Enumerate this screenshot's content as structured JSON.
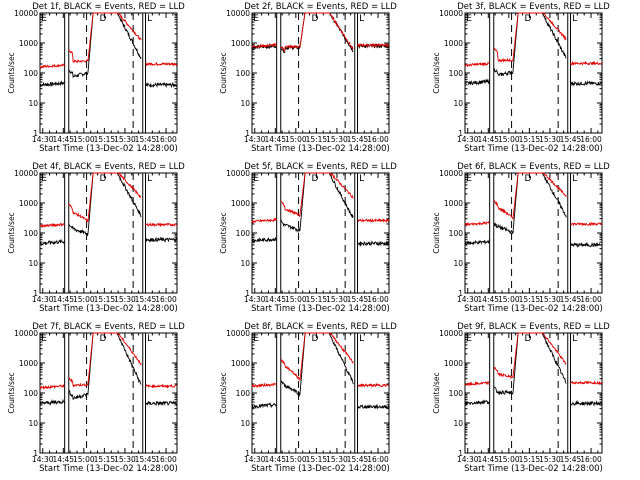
{
  "colors": {
    "events": "#000000",
    "lld": "#e00000",
    "background": "#ffffff"
  },
  "chart_data": [
    {
      "type": "line",
      "title": "Det 1f, BLACK = Events, RED = LLD",
      "xlabel": "Start Time (13-Dec-02 14:28:00)",
      "ylabel": "Counts/sec",
      "xticks": [
        "14:30",
        "14:45",
        "15:00",
        "15:15",
        "15:30",
        "15:45",
        "16:00"
      ],
      "yticks": [
        "1",
        "10",
        "100",
        "1000",
        "10000"
      ],
      "yscale": "log",
      "ylim": [
        1,
        10000
      ],
      "xlim_minutes": [
        0,
        100
      ],
      "markers": [
        "E",
        "D",
        "L"
      ],
      "series": [
        {
          "name": "Events",
          "color": "#000000",
          "base": 40,
          "pre": 70,
          "jump": 130,
          "dip": 100,
          "peakTail": 500,
          "post": 40
        },
        {
          "name": "LLD",
          "color": "#e00000",
          "base": 160,
          "pre": 240,
          "jump": 600,
          "dip": 250,
          "peakTail": 2000,
          "post": 200
        }
      ]
    },
    {
      "type": "line",
      "title": "Det 2f, BLACK = Events, RED = LLD",
      "xlabel": "Start Time (13-Dec-02 14:28:00)",
      "ylabel": "Counts/sec",
      "xticks": [
        "14:30",
        "14:45",
        "15:00",
        "15:15",
        "15:30",
        "15:45",
        "16:00"
      ],
      "yticks": [
        "1",
        "10",
        "100",
        "1000",
        "10000"
      ],
      "yscale": "log",
      "ylim": [
        1,
        10000
      ],
      "xlim_minutes": [
        0,
        100
      ],
      "markers": [
        "E",
        "D",
        "L"
      ],
      "series": [
        {
          "name": "Events",
          "color": "#000000",
          "base": 700,
          "pre": 700,
          "jump": 720,
          "dip": 700,
          "peakTail": 900,
          "post": 800
        },
        {
          "name": "LLD",
          "color": "#e00000",
          "base": 750,
          "pre": 750,
          "jump": 780,
          "dip": 750,
          "peakTail": 1000,
          "post": 850
        }
      ]
    },
    {
      "type": "line",
      "title": "Det 3f, BLACK = Events, RED = LLD",
      "xlabel": "Start Time (13-Dec-02 14:28:00)",
      "ylabel": "Counts/sec",
      "xticks": [
        "14:30",
        "14:45",
        "15:00",
        "15:15",
        "15:30",
        "15:45",
        "16:00"
      ],
      "yticks": [
        "1",
        "10",
        "100",
        "1000",
        "10000"
      ],
      "yscale": "log",
      "ylim": [
        1,
        10000
      ],
      "xlim_minutes": [
        0,
        100
      ],
      "markers": [
        "E",
        "D",
        "L"
      ],
      "series": [
        {
          "name": "Events",
          "color": "#000000",
          "base": 45,
          "pre": 75,
          "jump": 140,
          "dip": 110,
          "peakTail": 500,
          "post": 45
        },
        {
          "name": "LLD",
          "color": "#e00000",
          "base": 180,
          "pre": 260,
          "jump": 650,
          "dip": 270,
          "peakTail": 2200,
          "post": 210
        }
      ]
    },
    {
      "type": "line",
      "title": "Det 4f, BLACK = Events, RED = LLD",
      "xlabel": "Start Time (13-Dec-02 14:28:00)",
      "ylabel": "Counts/sec",
      "xticks": [
        "14:30",
        "14:45",
        "15:00",
        "15:15",
        "15:30",
        "15:45",
        "16:00"
      ],
      "yticks": [
        "1",
        "10",
        "100",
        "1000",
        "10000"
      ],
      "yscale": "log",
      "ylim": [
        1,
        10000
      ],
      "xlim_minutes": [
        0,
        100
      ],
      "markers": [
        "E",
        "D",
        "L"
      ],
      "series": [
        {
          "name": "Events",
          "color": "#000000",
          "base": 45,
          "pre": 150,
          "jump": 200,
          "dip": 90,
          "peakTail": 600,
          "post": 60
        },
        {
          "name": "LLD",
          "color": "#e00000",
          "base": 170,
          "pre": 550,
          "jump": 900,
          "dip": 240,
          "peakTail": 2500,
          "post": 190
        }
      ]
    },
    {
      "type": "line",
      "title": "Det 5f, BLACK = Events, RED = LLD",
      "xlabel": "Start Time (13-Dec-02 14:28:00)",
      "ylabel": "Counts/sec",
      "xticks": [
        "14:30",
        "14:45",
        "15:00",
        "15:15",
        "15:30",
        "15:45",
        "16:00"
      ],
      "yticks": [
        "1",
        "10",
        "100",
        "1000",
        "10000"
      ],
      "yscale": "log",
      "ylim": [
        1,
        10000
      ],
      "xlim_minutes": [
        0,
        100
      ],
      "markers": [
        "E",
        "D",
        "L"
      ],
      "series": [
        {
          "name": "Events",
          "color": "#000000",
          "base": 55,
          "pre": 200,
          "jump": 250,
          "dip": 120,
          "peakTail": 500,
          "post": 45
        },
        {
          "name": "LLD",
          "color": "#e00000",
          "base": 240,
          "pre": 700,
          "jump": 1100,
          "dip": 380,
          "peakTail": 2500,
          "post": 260
        }
      ]
    },
    {
      "type": "line",
      "title": "Det 6f, BLACK = Events, RED = LLD",
      "xlabel": "Start Time (13-Dec-02 14:28:00)",
      "ylabel": "Counts/sec",
      "xticks": [
        "14:30",
        "14:45",
        "15:00",
        "15:15",
        "15:30",
        "15:45",
        "16:00"
      ],
      "yticks": [
        "1",
        "10",
        "100",
        "1000",
        "10000"
      ],
      "yscale": "log",
      "ylim": [
        1,
        10000
      ],
      "xlim_minutes": [
        0,
        100
      ],
      "markers": [
        "E",
        "D",
        "L"
      ],
      "series": [
        {
          "name": "Events",
          "color": "#000000",
          "base": 45,
          "pre": 180,
          "jump": 220,
          "dip": 100,
          "peakTail": 600,
          "post": 40
        },
        {
          "name": "LLD",
          "color": "#e00000",
          "base": 190,
          "pre": 800,
          "jump": 1200,
          "dip": 300,
          "peakTail": 2800,
          "post": 200
        }
      ]
    },
    {
      "type": "line",
      "title": "Det 7f, BLACK = Events, RED = LLD",
      "xlabel": "Start Time (13-Dec-02 14:28:00)",
      "ylabel": "Counts/sec",
      "xticks": [
        "14:30",
        "14:45",
        "15:00",
        "15:15",
        "15:30",
        "15:45",
        "16:00"
      ],
      "yticks": [
        "1",
        "10",
        "100",
        "1000",
        "10000"
      ],
      "yscale": "log",
      "ylim": [
        1,
        10000
      ],
      "xlim_minutes": [
        0,
        100
      ],
      "markers": [
        "E",
        "D",
        "L"
      ],
      "series": [
        {
          "name": "Events",
          "color": "#000000",
          "base": 45,
          "pre": 60,
          "jump": 110,
          "dip": 90,
          "peakTail": 300,
          "post": 45
        },
        {
          "name": "LLD",
          "color": "#e00000",
          "base": 150,
          "pre": 180,
          "jump": 320,
          "dip": 190,
          "peakTail": 1500,
          "post": 170
        }
      ]
    },
    {
      "type": "line",
      "title": "Det 8f, BLACK = Events, RED = LLD",
      "xlabel": "Start Time (13-Dec-02 14:28:00)",
      "ylabel": "Counts/sec",
      "xticks": [
        "14:30",
        "14:45",
        "15:00",
        "15:15",
        "15:30",
        "15:45",
        "16:00"
      ],
      "yticks": [
        "1",
        "10",
        "100",
        "1000",
        "10000"
      ],
      "yscale": "log",
      "ylim": [
        1,
        10000
      ],
      "xlim_minutes": [
        0,
        100
      ],
      "markers": [
        "E",
        "D",
        "L"
      ],
      "series": [
        {
          "name": "Events",
          "color": "#000000",
          "base": 35,
          "pre": 200,
          "jump": 250,
          "dip": 90,
          "peakTail": 350,
          "post": 35
        },
        {
          "name": "LLD",
          "color": "#e00000",
          "base": 170,
          "pre": 900,
          "jump": 1300,
          "dip": 260,
          "peakTail": 1700,
          "post": 180
        }
      ]
    },
    {
      "type": "line",
      "title": "Det 9f, BLACK = Events, RED = LLD",
      "xlabel": "Start Time (13-Dec-02 14:28:00)",
      "ylabel": "Counts/sec",
      "xticks": [
        "14:30",
        "14:45",
        "15:00",
        "15:15",
        "15:30",
        "15:45",
        "16:00"
      ],
      "yticks": [
        "1",
        "10",
        "100",
        "1000",
        "10000"
      ],
      "yscale": "log",
      "ylim": [
        1,
        10000
      ],
      "xlim_minutes": [
        0,
        100
      ],
      "markers": [
        "E",
        "D",
        "L"
      ],
      "series": [
        {
          "name": "Events",
          "color": "#000000",
          "base": 45,
          "pre": 110,
          "jump": 150,
          "dip": 100,
          "peakTail": 350,
          "post": 45
        },
        {
          "name": "LLD",
          "color": "#e00000",
          "base": 190,
          "pre": 450,
          "jump": 750,
          "dip": 330,
          "peakTail": 1500,
          "post": 220
        }
      ]
    }
  ]
}
